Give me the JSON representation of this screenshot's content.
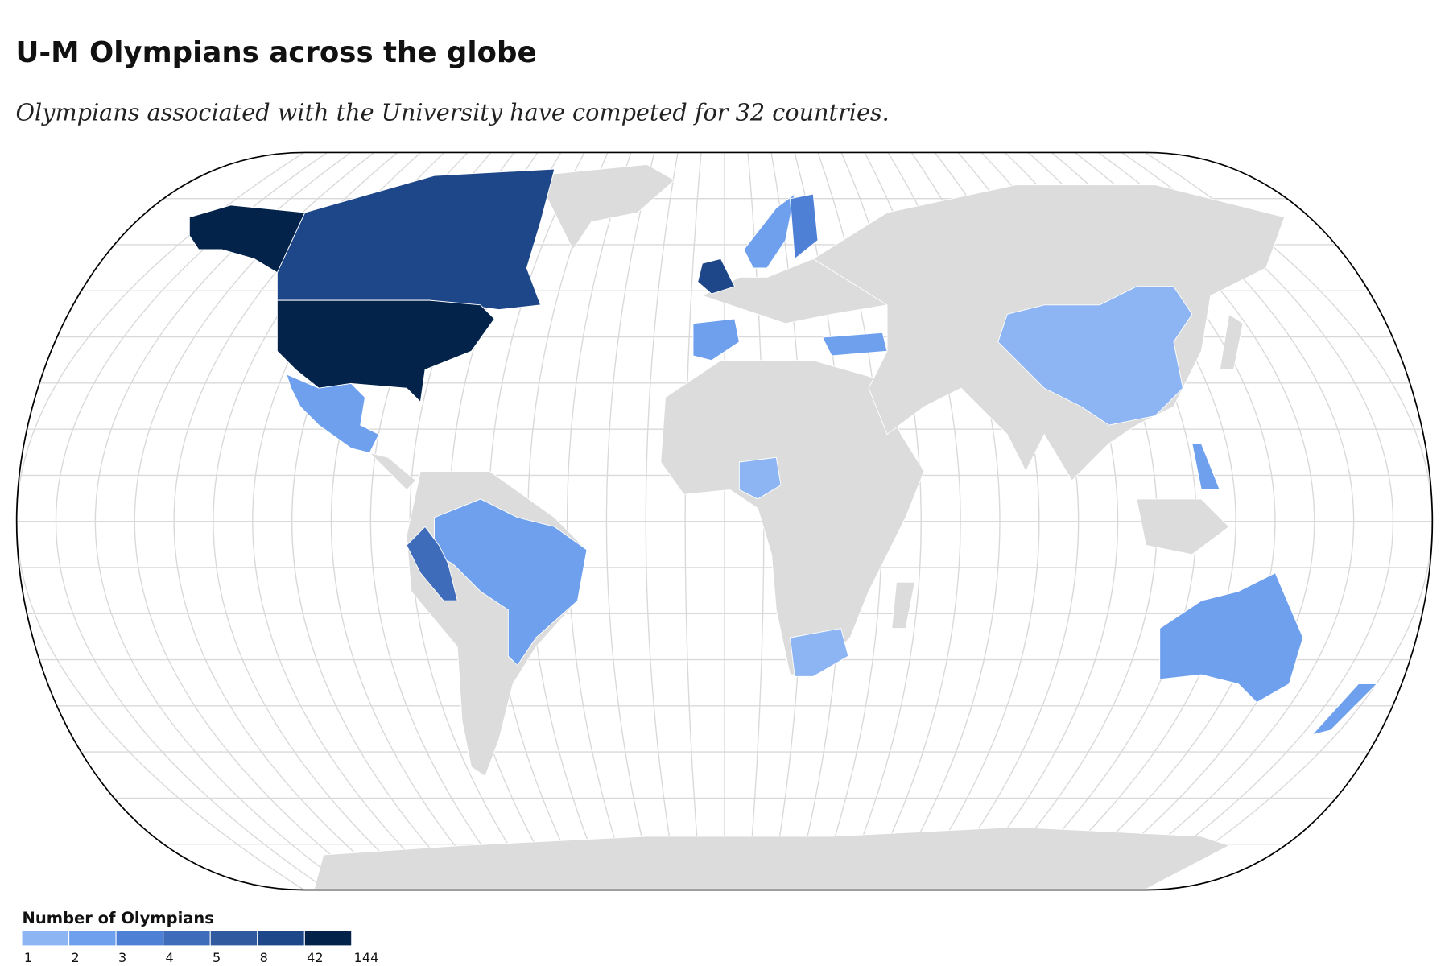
{
  "header": {
    "title": "U-M Olympians across the globe",
    "subtitle": "Olympians associated with the University have competed for 32 countries."
  },
  "legend": {
    "title": "Number of Olympians",
    "breaks": [
      1,
      2,
      3,
      4,
      5,
      8,
      42,
      144
    ],
    "colors": [
      "#8db4f3",
      "#6ea0ee",
      "#4e80d6",
      "#3e6cba",
      "#30599f",
      "#1e4789",
      "#03234a"
    ]
  }
}
